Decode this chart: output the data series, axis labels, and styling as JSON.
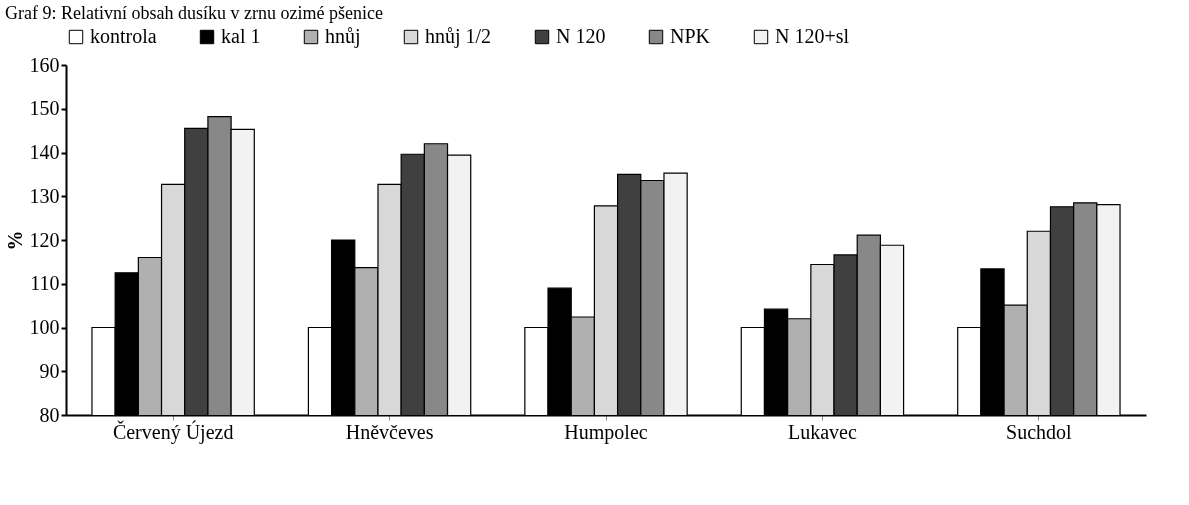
{
  "chart_data": {
    "type": "bar",
    "title": "Graf 9: Relativní obsah dusíku v zrnu ozimé pšenice",
    "ylabel": "%",
    "categories": [
      "Červený Újezd",
      "Hněvčeves",
      "Humpolec",
      "Lukavec",
      "Suchdol"
    ],
    "series": [
      {
        "name": "kontrola",
        "color": "#ffffff",
        "values": [
          100,
          100,
          100,
          100,
          100
        ]
      },
      {
        "name": "kal 1",
        "color": "#000000",
        "values": [
          112.5,
          120,
          109,
          104.2,
          113.4
        ]
      },
      {
        "name": "hnůj",
        "color": "#b0b0b0",
        "values": [
          116,
          113.7,
          102.4,
          102,
          105.1
        ]
      },
      {
        "name": "hnůj 1/2",
        "color": "#d8d8d8",
        "values": [
          132.7,
          132.7,
          127.8,
          114.4,
          122
        ]
      },
      {
        "name": "N 120",
        "color": "#404040",
        "values": [
          145.5,
          139.6,
          135,
          116.6,
          127.6
        ]
      },
      {
        "name": "NPK",
        "color": "#888888",
        "values": [
          148.2,
          142,
          133.6,
          121.1,
          128.5
        ]
      },
      {
        "name": "N 120+sl",
        "color": "#f2f2f2",
        "values": [
          145.3,
          139.4,
          135.3,
          118.8,
          128.1
        ]
      }
    ],
    "ylim": [
      80,
      160
    ],
    "yticks": [
      80,
      90,
      100,
      110,
      120,
      130,
      140,
      150,
      160
    ],
    "grid": false,
    "legend": "top"
  }
}
